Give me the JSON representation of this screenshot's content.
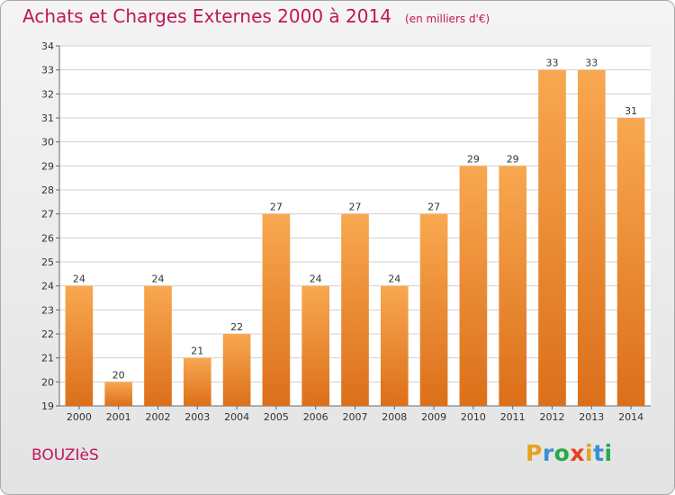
{
  "title": "Achats et Charges Externes 2000 à 2014",
  "subtitle": "(en milliers d'€)",
  "commune": "BOUZIèS",
  "brand": {
    "letters": [
      "P",
      "r",
      "o",
      "x",
      "i",
      "t",
      "i"
    ],
    "colors": [
      "#e8a020",
      "#3a8fd6",
      "#2aa84a",
      "#e84020",
      "#e8a020",
      "#3a8fd6",
      "#2aa84a"
    ]
  },
  "colors": {
    "title": "#c0165a",
    "bar_top": "#f8a850",
    "bar_bottom": "#dc6f1a",
    "grid": "#d0d0d0"
  },
  "chart_data": {
    "type": "bar",
    "categories": [
      "2000",
      "2001",
      "2002",
      "2003",
      "2004",
      "2005",
      "2006",
      "2007",
      "2008",
      "2009",
      "2010",
      "2011",
      "2012",
      "2013",
      "2014"
    ],
    "values": [
      24,
      20,
      24,
      21,
      22,
      27,
      24,
      27,
      24,
      27,
      29,
      29,
      33,
      33,
      31
    ],
    "value_labels": [
      "24",
      "20",
      "24",
      "21",
      "22",
      "27",
      "24",
      "27",
      "24",
      "27",
      "29",
      "29",
      "33",
      "33",
      "31"
    ],
    "title": "Achats et Charges Externes 2000 à 2014",
    "subtitle": "(en milliers d'€)",
    "xlabel": "",
    "ylabel": "",
    "ylim": [
      19,
      34
    ],
    "yticks": [
      "19",
      "20",
      "21",
      "22",
      "23",
      "24",
      "25",
      "26",
      "27",
      "28",
      "29",
      "30",
      "31",
      "32",
      "33",
      "34"
    ],
    "grid": true,
    "legend": "none"
  }
}
